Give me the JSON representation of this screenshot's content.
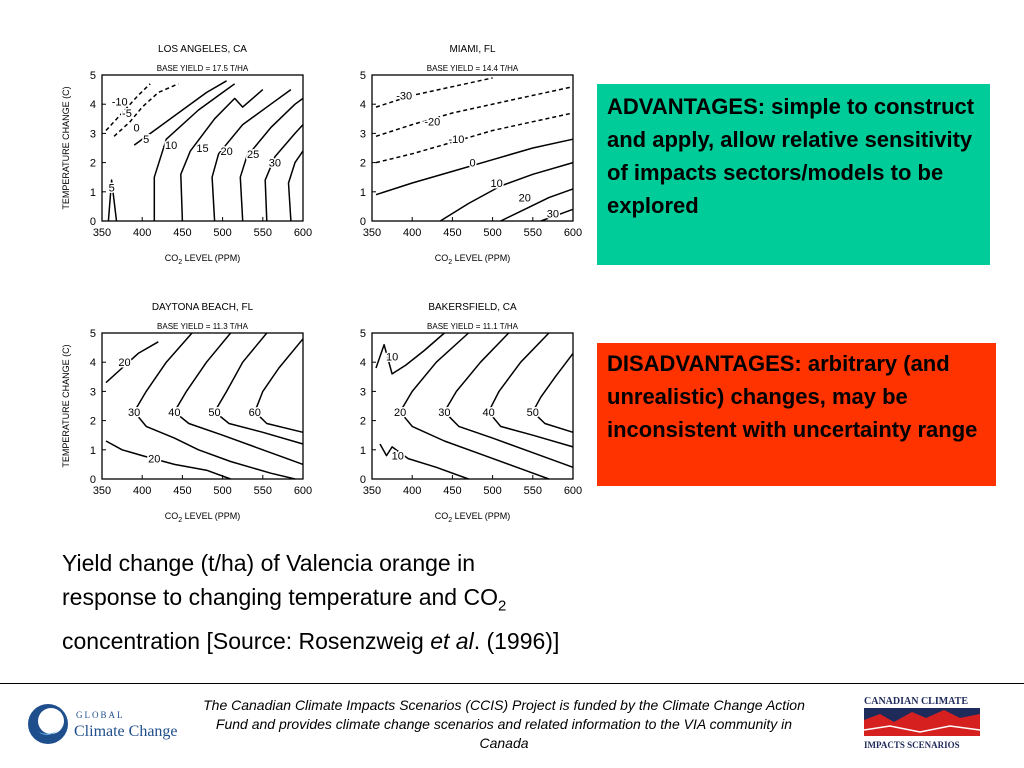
{
  "chart_data": [
    {
      "type": "contour",
      "title": "LOS ANGELES, CA",
      "subtitle": "BASE YIELD = 17.5 T/HA",
      "xlabel": "CO2 LEVEL (PPM)",
      "ylabel": "TEMPERATURE CHANGE (C)",
      "xlim": [
        350,
        600
      ],
      "ylim": [
        0,
        5
      ],
      "xticks": [
        350,
        400,
        450,
        500,
        550,
        600
      ],
      "yticks": [
        0,
        1,
        2,
        3,
        4,
        5
      ],
      "contours": [
        {
          "level": "-10",
          "dashed": true,
          "points": [
            [
              355,
              3.1
            ],
            [
              375,
              3.7
            ],
            [
              395,
              4.3
            ],
            [
              410,
              4.7
            ]
          ]
        },
        {
          "level": "-5",
          "dashed": true,
          "points": [
            [
              365,
              2.9
            ],
            [
              385,
              3.4
            ],
            [
              400,
              3.9
            ],
            [
              420,
              4.4
            ],
            [
              445,
              4.7
            ]
          ]
        },
        {
          "level": "0",
          "dashed": false,
          "points": [
            [
              390,
              2.6
            ],
            [
              420,
              3.2
            ],
            [
              455,
              3.9
            ],
            [
              480,
              4.4
            ],
            [
              505,
              4.8
            ]
          ]
        },
        {
          "level": "5",
          "dashed": false,
          "points": [
            [
              415,
              0
            ],
            [
              415,
              1.5
            ],
            [
              430,
              2.8
            ],
            [
              470,
              3.8
            ],
            [
              500,
              4.4
            ],
            [
              515,
              4.7
            ]
          ]
        },
        {
          "level": "10",
          "dashed": false,
          "points": [
            [
              450,
              0
            ],
            [
              448,
              1.6
            ],
            [
              460,
              2.4
            ],
            [
              490,
              3.5
            ],
            [
              515,
              4.2
            ],
            [
              525,
              3.9
            ],
            [
              550,
              4.5
            ]
          ]
        },
        {
          "level": "15",
          "dashed": false,
          "points": [
            [
              490,
              0
            ],
            [
              487,
              1.5
            ],
            [
              495,
              2.3
            ],
            [
              525,
              3.3
            ],
            [
              560,
              4.0
            ],
            [
              585,
              4.5
            ]
          ]
        },
        {
          "level": "20",
          "dashed": false,
          "points": [
            [
              525,
              0
            ],
            [
              522,
              1.5
            ],
            [
              530,
              2.2
            ],
            [
              560,
              3.2
            ],
            [
              590,
              4.0
            ],
            [
              600,
              4.2
            ]
          ]
        },
        {
          "level": "25",
          "dashed": false,
          "points": [
            [
              555,
              0
            ],
            [
              553,
              1.4
            ],
            [
              565,
              2.2
            ],
            [
              590,
              3.0
            ],
            [
              600,
              3.3
            ]
          ]
        },
        {
          "level": "30",
          "dashed": false,
          "points": [
            [
              585,
              0
            ],
            [
              582,
              1.3
            ],
            [
              590,
              2.0
            ],
            [
              600,
              2.4
            ]
          ]
        },
        {
          "level": "5",
          "dashed": false,
          "points": [
            [
              358,
              0
            ],
            [
              362,
              1.4
            ],
            [
              368,
              0
            ]
          ]
        }
      ],
      "labels": [
        {
          "text": "-10",
          "x": 372,
          "y": 4.1
        },
        {
          "text": "-5",
          "x": 381,
          "y": 3.7
        },
        {
          "text": "0",
          "x": 393,
          "y": 3.2
        },
        {
          "text": "5",
          "x": 405,
          "y": 2.8
        },
        {
          "text": "10",
          "x": 436,
          "y": 2.6
        },
        {
          "text": "15",
          "x": 475,
          "y": 2.5
        },
        {
          "text": "20",
          "x": 505,
          "y": 2.4
        },
        {
          "text": "25",
          "x": 538,
          "y": 2.3
        },
        {
          "text": "30",
          "x": 565,
          "y": 2.0
        },
        {
          "text": "5",
          "x": 362,
          "y": 1.15
        }
      ]
    },
    {
      "type": "contour",
      "title": "MIAMI, FL",
      "subtitle": "BASE YIELD = 14.4 T/HA",
      "xlabel": "CO2 LEVEL (PPM)",
      "ylabel": "",
      "xlim": [
        350,
        600
      ],
      "ylim": [
        0,
        5
      ],
      "xticks": [
        350,
        400,
        450,
        500,
        550,
        600
      ],
      "yticks": [
        0,
        1,
        2,
        3,
        4,
        5
      ],
      "contours": [
        {
          "level": "-30",
          "dashed": true,
          "points": [
            [
              355,
              3.9
            ],
            [
              400,
              4.3
            ],
            [
              450,
              4.6
            ],
            [
              500,
              4.9
            ]
          ]
        },
        {
          "level": "-20",
          "dashed": true,
          "points": [
            [
              355,
              2.9
            ],
            [
              400,
              3.3
            ],
            [
              450,
              3.7
            ],
            [
              500,
              4.0
            ],
            [
              550,
              4.3
            ],
            [
              600,
              4.6
            ]
          ]
        },
        {
          "level": "-10",
          "dashed": true,
          "points": [
            [
              355,
              2.0
            ],
            [
              400,
              2.3
            ],
            [
              450,
              2.7
            ],
            [
              500,
              3.1
            ],
            [
              550,
              3.4
            ],
            [
              600,
              3.7
            ]
          ]
        },
        {
          "level": "0",
          "dashed": false,
          "points": [
            [
              355,
              0.9
            ],
            [
              400,
              1.3
            ],
            [
              450,
              1.7
            ],
            [
              500,
              2.1
            ],
            [
              550,
              2.5
            ],
            [
              600,
              2.8
            ]
          ]
        },
        {
          "level": "10",
          "dashed": false,
          "points": [
            [
              435,
              0
            ],
            [
              470,
              0.6
            ],
            [
              510,
              1.2
            ],
            [
              550,
              1.6
            ],
            [
              600,
              2.0
            ]
          ]
        },
        {
          "level": "20",
          "dashed": false,
          "points": [
            [
              510,
              0
            ],
            [
              540,
              0.4
            ],
            [
              570,
              0.8
            ],
            [
              600,
              1.1
            ]
          ]
        },
        {
          "level": "30",
          "dashed": false,
          "points": [
            [
              560,
              0
            ],
            [
              580,
              0.2
            ],
            [
              600,
              0.4
            ]
          ]
        }
      ],
      "labels": [
        {
          "text": "-30",
          "x": 390,
          "y": 4.3
        },
        {
          "text": "-20",
          "x": 425,
          "y": 3.4
        },
        {
          "text": "-10",
          "x": 455,
          "y": 2.8
        },
        {
          "text": "0",
          "x": 475,
          "y": 2.0
        },
        {
          "text": "10",
          "x": 505,
          "y": 1.3
        },
        {
          "text": "20",
          "x": 540,
          "y": 0.8
        },
        {
          "text": "30",
          "x": 575,
          "y": 0.25
        }
      ]
    },
    {
      "type": "contour",
      "title": "DAYTONA BEACH, FL",
      "subtitle": "BASE YIELD = 11.3 T/HA",
      "xlabel": "CO2 LEVEL (PPM)",
      "ylabel": "TEMPERATURE CHANGE (C)",
      "xlim": [
        350,
        600
      ],
      "ylim": [
        0,
        5
      ],
      "xticks": [
        350,
        400,
        450,
        500,
        550,
        600
      ],
      "yticks": [
        0,
        1,
        2,
        3,
        4,
        5
      ],
      "contours": [
        {
          "level": "20",
          "dashed": false,
          "points": [
            [
              355,
              3.3
            ],
            [
              375,
              3.8
            ],
            [
              395,
              4.3
            ],
            [
              420,
              4.7
            ]
          ]
        },
        {
          "level": "30",
          "dashed": false,
          "points": [
            [
              462,
              5
            ],
            [
              430,
              4.0
            ],
            [
              405,
              3.0
            ],
            [
              390,
              2.3
            ],
            [
              405,
              1.8
            ],
            [
              440,
              1.4
            ],
            [
              470,
              1.0
            ],
            [
              510,
              0.6
            ],
            [
              560,
              0.2
            ],
            [
              590,
              0
            ]
          ]
        },
        {
          "level": "40",
          "dashed": false,
          "points": [
            [
              510,
              5
            ],
            [
              480,
              4.0
            ],
            [
              455,
              3.0
            ],
            [
              440,
              2.3
            ],
            [
              458,
              1.9
            ],
            [
              500,
              1.5
            ],
            [
              540,
              1.1
            ],
            [
              580,
              0.7
            ],
            [
              600,
              0.5
            ]
          ]
        },
        {
          "level": "50",
          "dashed": false,
          "points": [
            [
              555,
              5
            ],
            [
              525,
              4.0
            ],
            [
              505,
              3.0
            ],
            [
              490,
              2.3
            ],
            [
              508,
              1.9
            ],
            [
              550,
              1.6
            ],
            [
              600,
              1.2
            ]
          ]
        },
        {
          "level": "60",
          "dashed": false,
          "points": [
            [
              600,
              4.8
            ],
            [
              570,
              3.8
            ],
            [
              550,
              3.0
            ],
            [
              540,
              2.3
            ],
            [
              555,
              1.9
            ],
            [
              600,
              1.6
            ]
          ]
        },
        {
          "level": "20",
          "dashed": false,
          "points": [
            [
              355,
              1.3
            ],
            [
              375,
              1.0
            ],
            [
              400,
              0.8
            ],
            [
              440,
              0.5
            ],
            [
              480,
              0.3
            ],
            [
              510,
              0
            ]
          ]
        }
      ],
      "labels": [
        {
          "text": "20",
          "x": 378,
          "y": 4.0
        },
        {
          "text": "30",
          "x": 390,
          "y": 2.3
        },
        {
          "text": "40",
          "x": 440,
          "y": 2.3
        },
        {
          "text": "50",
          "x": 490,
          "y": 2.3
        },
        {
          "text": "60",
          "x": 540,
          "y": 2.3
        },
        {
          "text": "20",
          "x": 415,
          "y": 0.7
        }
      ]
    },
    {
      "type": "contour",
      "title": "BAKERSFIELD, CA",
      "subtitle": "BASE YIELD = 11.1 T/HA",
      "xlabel": "CO2 LEVEL (PPM)",
      "ylabel": "",
      "xlim": [
        350,
        600
      ],
      "ylim": [
        0,
        5
      ],
      "xticks": [
        350,
        400,
        450,
        500,
        550,
        600
      ],
      "yticks": [
        0,
        1,
        2,
        3,
        4,
        5
      ],
      "contours": [
        {
          "level": "10",
          "dashed": false,
          "points": [
            [
              355,
              3.8
            ],
            [
              365,
              4.6
            ],
            [
              375,
              3.6
            ],
            [
              392,
              3.9
            ],
            [
              415,
              4.4
            ],
            [
              440,
              5
            ]
          ]
        },
        {
          "level": "20",
          "dashed": false,
          "points": [
            [
              470,
              5
            ],
            [
              430,
              4.0
            ],
            [
              400,
              3.0
            ],
            [
              385,
              2.3
            ],
            [
              400,
              1.8
            ],
            [
              440,
              1.3
            ],
            [
              490,
              0.8
            ],
            [
              540,
              0.3
            ],
            [
              570,
              0
            ]
          ]
        },
        {
          "level": "30",
          "dashed": false,
          "points": [
            [
              520,
              5
            ],
            [
              485,
              4.0
            ],
            [
              455,
              3.0
            ],
            [
              440,
              2.3
            ],
            [
              458,
              1.8
            ],
            [
              500,
              1.4
            ],
            [
              550,
              0.9
            ],
            [
              600,
              0.4
            ]
          ]
        },
        {
          "level": "40",
          "dashed": false,
          "points": [
            [
              570,
              5
            ],
            [
              535,
              4.0
            ],
            [
              508,
              3.0
            ],
            [
              495,
              2.3
            ],
            [
              510,
              1.8
            ],
            [
              550,
              1.5
            ],
            [
              600,
              1.1
            ]
          ]
        },
        {
          "level": "50",
          "dashed": false,
          "points": [
            [
              600,
              4.3
            ],
            [
              578,
              3.5
            ],
            [
              560,
              2.8
            ],
            [
              550,
              2.3
            ],
            [
              565,
              1.9
            ],
            [
              600,
              1.6
            ]
          ]
        },
        {
          "level": "10",
          "dashed": false,
          "points": [
            [
              360,
              1.2
            ],
            [
              368,
              0.8
            ],
            [
              375,
              1.1
            ],
            [
              395,
              0.7
            ],
            [
              430,
              0.4
            ],
            [
              470,
              0
            ]
          ]
        }
      ],
      "labels": [
        {
          "text": "10",
          "x": 375,
          "y": 4.2
        },
        {
          "text": "20",
          "x": 385,
          "y": 2.3
        },
        {
          "text": "30",
          "x": 440,
          "y": 2.3
        },
        {
          "text": "40",
          "x": 495,
          "y": 2.3
        },
        {
          "text": "50",
          "x": 550,
          "y": 2.3
        },
        {
          "text": "10",
          "x": 382,
          "y": 0.8
        }
      ]
    }
  ],
  "boxes": {
    "advantages": "ADVANTAGES: simple to construct and apply, allow relative sensitivity of impacts sectors/models to be explored",
    "disadvantages": "DISADVANTAGES: arbitrary (and unrealistic) changes, may be inconsistent with uncertainty range"
  },
  "caption": {
    "part1": "Yield change (t/ha) of Valencia orange in response to changing temperature and CO",
    "sub": "2",
    "part2": " concentration [Source: Rosenzweig ",
    "italic": "et al",
    "part3": ". (1996)]"
  },
  "footer": {
    "text": "The Canadian Climate Impacts Scenarios (CCIS) Project is funded by the Climate Change Action Fund and provides climate change scenarios and related information to the VIA community in Canada",
    "gcc_logo_top": "GLOBAL",
    "gcc_logo_bottom": "Climate Change",
    "ccis_logo_top": "CANADIAN CLIMATE",
    "ccis_logo_bottom": "IMPACTS SCENARIOS"
  },
  "colors": {
    "advantages_bg": "#00cc99",
    "disadvantages_bg": "#ff3300",
    "gcc_blue": "#1f4e8c",
    "ccis_red": "#d62020",
    "ccis_navy": "#1e2a5a"
  }
}
